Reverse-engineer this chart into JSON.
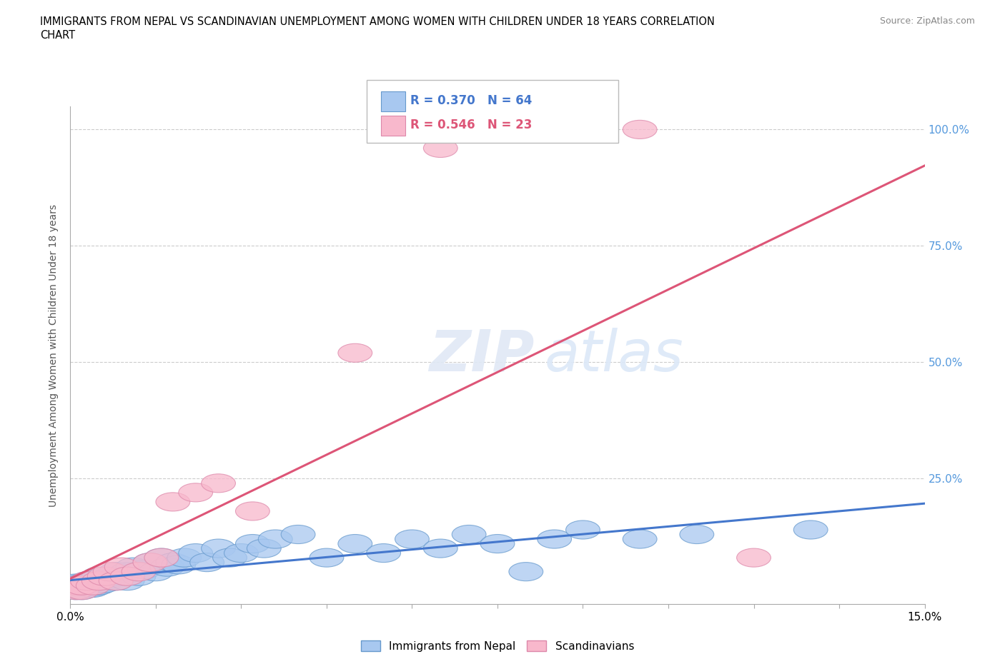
{
  "title_line1": "IMMIGRANTS FROM NEPAL VS SCANDINAVIAN UNEMPLOYMENT AMONG WOMEN WITH CHILDREN UNDER 18 YEARS CORRELATION",
  "title_line2": "CHART",
  "source": "Source: ZipAtlas.com",
  "ylabel": "Unemployment Among Women with Children Under 18 years",
  "xlim": [
    0.0,
    0.15
  ],
  "ylim": [
    -0.02,
    1.05
  ],
  "ytick_positions": [
    0.0,
    0.25,
    0.5,
    0.75,
    1.0
  ],
  "grid_yticks": [
    0.25,
    0.5,
    0.75,
    1.0
  ],
  "nepal_color": "#a8c8f0",
  "nepal_edge_color": "#6699cc",
  "scand_color": "#f8b8cc",
  "scand_edge_color": "#dd88aa",
  "nepal_line_color": "#4477cc",
  "scand_line_color": "#dd5577",
  "ytick_color": "#5599dd",
  "legend_nepal_label": "Immigrants from Nepal",
  "legend_scand_label": "Scandinavians",
  "nepal_R": 0.37,
  "nepal_N": 64,
  "scand_R": 0.546,
  "scand_N": 23,
  "nepal_x": [
    0.001,
    0.001,
    0.001,
    0.001,
    0.001,
    0.0015,
    0.002,
    0.002,
    0.002,
    0.002,
    0.0025,
    0.003,
    0.003,
    0.003,
    0.003,
    0.0035,
    0.004,
    0.004,
    0.004,
    0.0045,
    0.005,
    0.005,
    0.005,
    0.006,
    0.006,
    0.007,
    0.007,
    0.008,
    0.008,
    0.009,
    0.01,
    0.01,
    0.011,
    0.012,
    0.013,
    0.014,
    0.015,
    0.016,
    0.017,
    0.018,
    0.019,
    0.02,
    0.022,
    0.024,
    0.026,
    0.028,
    0.03,
    0.032,
    0.034,
    0.036,
    0.04,
    0.045,
    0.05,
    0.055,
    0.06,
    0.065,
    0.07,
    0.075,
    0.08,
    0.085,
    0.09,
    0.1,
    0.11,
    0.13
  ],
  "nepal_y": [
    0.02,
    0.015,
    0.025,
    0.01,
    0.02,
    0.015,
    0.02,
    0.015,
    0.025,
    0.01,
    0.02,
    0.025,
    0.015,
    0.02,
    0.03,
    0.015,
    0.02,
    0.025,
    0.015,
    0.02,
    0.03,
    0.02,
    0.04,
    0.03,
    0.025,
    0.035,
    0.04,
    0.03,
    0.05,
    0.04,
    0.05,
    0.03,
    0.06,
    0.04,
    0.055,
    0.07,
    0.05,
    0.08,
    0.06,
    0.07,
    0.065,
    0.08,
    0.09,
    0.07,
    0.1,
    0.08,
    0.09,
    0.11,
    0.1,
    0.12,
    0.13,
    0.08,
    0.11,
    0.09,
    0.12,
    0.1,
    0.13,
    0.11,
    0.05,
    0.12,
    0.14,
    0.12,
    0.13,
    0.14
  ],
  "scand_x": [
    0.001,
    0.001,
    0.002,
    0.002,
    0.003,
    0.004,
    0.005,
    0.006,
    0.007,
    0.008,
    0.009,
    0.01,
    0.012,
    0.014,
    0.016,
    0.018,
    0.022,
    0.026,
    0.032,
    0.05,
    0.065,
    0.1,
    0.12
  ],
  "scand_y": [
    0.01,
    0.02,
    0.01,
    0.02,
    0.03,
    0.02,
    0.03,
    0.04,
    0.05,
    0.03,
    0.06,
    0.04,
    0.05,
    0.07,
    0.08,
    0.2,
    0.22,
    0.24,
    0.18,
    0.52,
    0.96,
    1.0,
    0.08
  ]
}
